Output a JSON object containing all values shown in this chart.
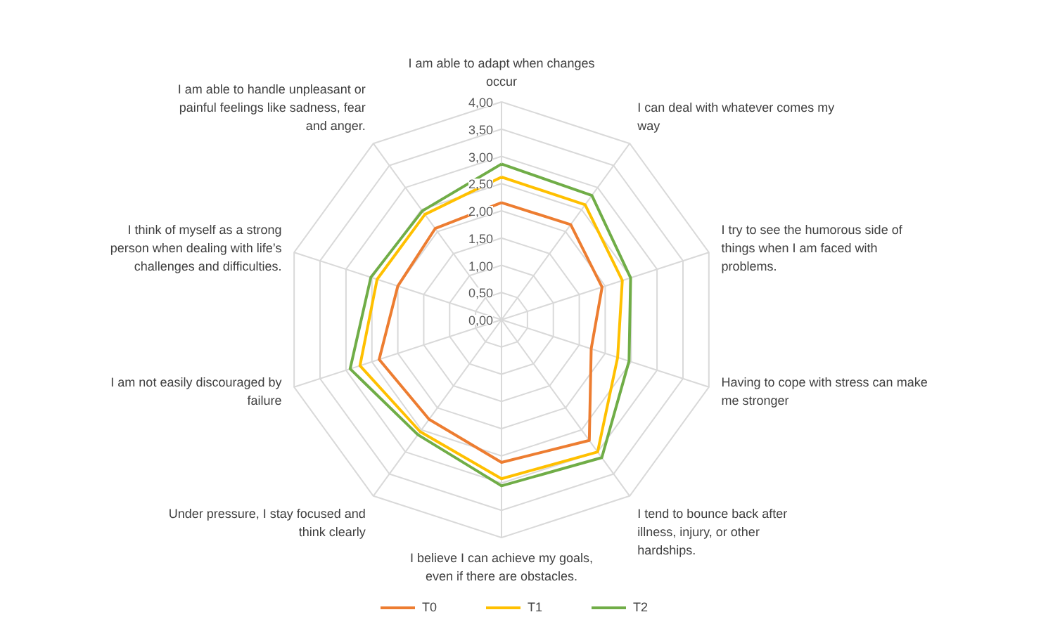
{
  "chart_data": {
    "type": "radar",
    "categories": [
      "I am able to adapt when changes occur",
      "I can deal with whatever comes my way",
      "I try to see the humorous side of things when I am faced with problems.",
      "Having to cope with stress can make me stronger",
      "I tend to bounce back after illness, injury, or other hardships.",
      "I believe I can achieve my goals, even if there are obstacles.",
      "Under pressure, I stay focused and think clearly",
      "I am not easily discouraged by failure",
      "I think of myself as a strong person when dealing with life’s challenges and difficulties.",
      "I am able to handle unpleasant or painful feelings like sadness, fear and anger."
    ],
    "series": [
      {
        "name": "T0",
        "color": "#ed7d31",
        "values": [
          2.15,
          2.16,
          1.94,
          1.73,
          2.74,
          2.62,
          2.26,
          2.36,
          2.0,
          2.07
        ]
      },
      {
        "name": "T1",
        "color": "#ffc000",
        "values": [
          2.62,
          2.61,
          2.33,
          2.24,
          3.0,
          2.92,
          2.54,
          2.73,
          2.4,
          2.39
        ]
      },
      {
        "name": "T2",
        "color": "#70ad47",
        "values": [
          2.86,
          2.82,
          2.49,
          2.46,
          3.13,
          3.05,
          2.61,
          2.92,
          2.52,
          2.47
        ]
      }
    ],
    "ylim": [
      0,
      4
    ],
    "yticks": [
      {
        "value": 0,
        "label": "0,00"
      },
      {
        "value": 0.5,
        "label": "0,50"
      },
      {
        "value": 1,
        "label": "1,00"
      },
      {
        "value": 1.5,
        "label": "1,50"
      },
      {
        "value": 2,
        "label": "2,00"
      },
      {
        "value": 2.5,
        "label": "2,50"
      },
      {
        "value": 3,
        "label": "3,00"
      },
      {
        "value": 3.5,
        "label": "3,50"
      },
      {
        "value": 4,
        "label": "4,00"
      }
    ],
    "grid": true,
    "legend": "bottom",
    "line_style": "solid",
    "marker": "none"
  }
}
